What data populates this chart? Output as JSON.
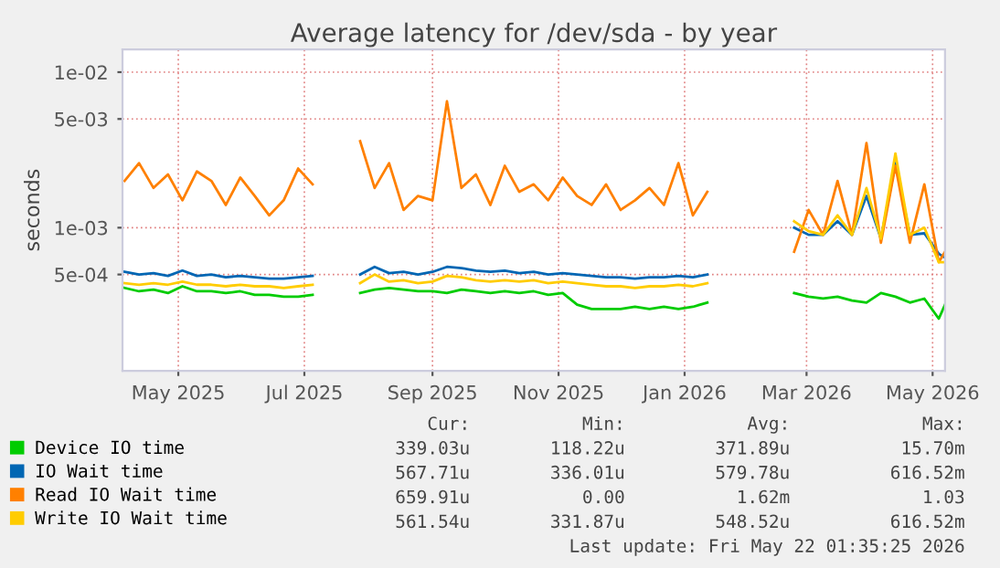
{
  "chart_data": {
    "type": "line",
    "title": "Average latency for /dev/sda - by year",
    "ylabel": "seconds",
    "log": "y",
    "grid": true,
    "legend": "bottom",
    "marker": "none",
    "line_style": "solid",
    "xlim": [
      "2025-04-19",
      "2026-05-22"
    ],
    "xticks": [
      {
        "value": "2025-05-16",
        "label": "May 2025"
      },
      {
        "value": "2025-07-16",
        "label": "Jul 2025"
      },
      {
        "value": "2025-09-16",
        "label": "Sep 2025"
      },
      {
        "value": "2025-11-16",
        "label": "Nov 2025"
      },
      {
        "value": "2026-01-16",
        "label": "Jan 2026"
      },
      {
        "value": "2026-03-16",
        "label": "Mar 2026"
      },
      {
        "value": "2026-05-16",
        "label": "May 2026"
      }
    ],
    "ylim": [
      0.00012,
      0.014
    ],
    "yticks": [
      {
        "value": 0.0005,
        "label": "5e-04"
      },
      {
        "value": 0.001,
        "label": "1e-03"
      },
      {
        "value": 0.005,
        "label": "5e-03"
      },
      {
        "value": 0.01,
        "label": "1e-02"
      }
    ],
    "x": [
      "2025-04-20",
      "2025-04-27",
      "2025-05-04",
      "2025-05-11",
      "2025-05-18",
      "2025-05-25",
      "2025-06-01",
      "2025-06-08",
      "2025-06-15",
      "2025-06-22",
      "2025-06-29",
      "2025-07-06",
      "2025-07-13",
      "2025-07-20",
      "2025-08-01",
      "2025-08-12",
      "2025-08-19",
      "2025-08-26",
      "2025-09-02",
      "2025-09-09",
      "2025-09-16",
      "2025-09-23",
      "2025-09-30",
      "2025-10-07",
      "2025-10-14",
      "2025-10-21",
      "2025-10-28",
      "2025-11-04",
      "2025-11-11",
      "2025-11-18",
      "2025-11-25",
      "2025-12-02",
      "2025-12-09",
      "2025-12-16",
      "2025-12-23",
      "2025-12-30",
      "2026-01-06",
      "2026-01-13",
      "2026-01-20",
      "2026-01-27",
      "2026-02-15",
      "2026-03-10",
      "2026-03-17",
      "2026-03-24",
      "2026-03-31",
      "2026-04-07",
      "2026-04-14",
      "2026-04-21",
      "2026-04-28",
      "2026-05-05",
      "2026-05-12",
      "2026-05-19",
      "2026-05-22"
    ],
    "series": [
      {
        "name": "Device IO time",
        "color": "#00cc00",
        "values": [
          0.00041,
          0.00039,
          0.0004,
          0.00038,
          0.00042,
          0.00039,
          0.00039,
          0.00038,
          0.00039,
          0.00037,
          0.00037,
          0.00036,
          0.00036,
          0.00037,
          null,
          0.00038,
          0.0004,
          0.00041,
          0.0004,
          0.00039,
          0.00039,
          0.00038,
          0.0004,
          0.00039,
          0.00038,
          0.00039,
          0.00038,
          0.00039,
          0.00037,
          0.00038,
          0.00032,
          0.0003,
          0.0003,
          0.0003,
          0.00031,
          0.0003,
          0.00031,
          0.0003,
          0.00031,
          0.00033,
          null,
          0.00038,
          0.00036,
          0.00035,
          0.00036,
          0.00034,
          0.00033,
          0.00038,
          0.00036,
          0.00033,
          0.00035,
          0.00026,
          0.00032
        ]
      },
      {
        "name": "IO Wait time",
        "color": "#0066b3",
        "values": [
          0.00052,
          0.0005,
          0.00051,
          0.00049,
          0.00053,
          0.00049,
          0.0005,
          0.00048,
          0.00049,
          0.00048,
          0.00047,
          0.00047,
          0.00048,
          0.00049,
          null,
          0.0005,
          0.00056,
          0.00051,
          0.00052,
          0.0005,
          0.00052,
          0.00056,
          0.00055,
          0.00053,
          0.00052,
          0.00053,
          0.00051,
          0.00052,
          0.0005,
          0.00051,
          0.0005,
          0.00049,
          0.00048,
          0.00048,
          0.00047,
          0.00048,
          0.00048,
          0.00049,
          0.00048,
          0.0005,
          null,
          0.001,
          0.0009,
          0.0009,
          0.0011,
          0.0009,
          0.0016,
          0.00085,
          0.0026,
          0.0009,
          0.00092,
          0.00068,
          0.00064
        ]
      },
      {
        "name": "Read IO Wait time",
        "color": "#ff8000",
        "values": [
          0.002,
          0.0026,
          0.0018,
          0.0022,
          0.0015,
          0.0023,
          0.002,
          0.0014,
          0.0021,
          0.0016,
          0.0012,
          0.0015,
          0.0024,
          0.0019,
          null,
          0.0036,
          0.0018,
          0.0026,
          0.0013,
          0.0016,
          0.0015,
          0.0065,
          0.0018,
          0.0022,
          0.0014,
          0.0025,
          0.0017,
          0.0019,
          0.0015,
          0.0021,
          0.0016,
          0.0014,
          0.0019,
          0.0013,
          0.0015,
          0.0018,
          0.0014,
          0.0026,
          0.0012,
          0.0017,
          null,
          0.0007,
          0.0013,
          0.0009,
          0.002,
          0.0009,
          0.0035,
          0.0008,
          0.0025,
          0.0008,
          0.0019,
          0.0006,
          0.0007
        ]
      },
      {
        "name": "Write IO Wait time",
        "color": "#ffcc00",
        "values": [
          0.00044,
          0.00043,
          0.00044,
          0.00043,
          0.00045,
          0.00043,
          0.00043,
          0.00042,
          0.00043,
          0.00042,
          0.00042,
          0.00041,
          0.00042,
          0.00043,
          null,
          0.00044,
          0.0005,
          0.00045,
          0.00046,
          0.00044,
          0.00045,
          0.00049,
          0.00048,
          0.00046,
          0.00045,
          0.00046,
          0.00045,
          0.00046,
          0.00044,
          0.00045,
          0.00044,
          0.00043,
          0.00042,
          0.00042,
          0.00041,
          0.00042,
          0.00042,
          0.00043,
          0.00042,
          0.00044,
          null,
          0.0011,
          0.00095,
          0.0009,
          0.0012,
          0.0009,
          0.0018,
          0.00085,
          0.003,
          0.0009,
          0.001,
          0.0006,
          0.0006
        ]
      }
    ],
    "annotations": [
      "Cur:",
      "Min:",
      "Avg:",
      "Max:",
      "339.03u",
      "118.22u",
      "371.89u",
      "15.70m",
      "567.71u",
      "336.01u",
      "579.78u",
      "616.52m",
      "659.91u",
      "0.00",
      "1.62m",
      "1.03",
      "561.54u",
      "331.87u",
      "548.52u",
      "616.52m",
      "Last update: Fri May 22 01:35:25 2026"
    ]
  }
}
